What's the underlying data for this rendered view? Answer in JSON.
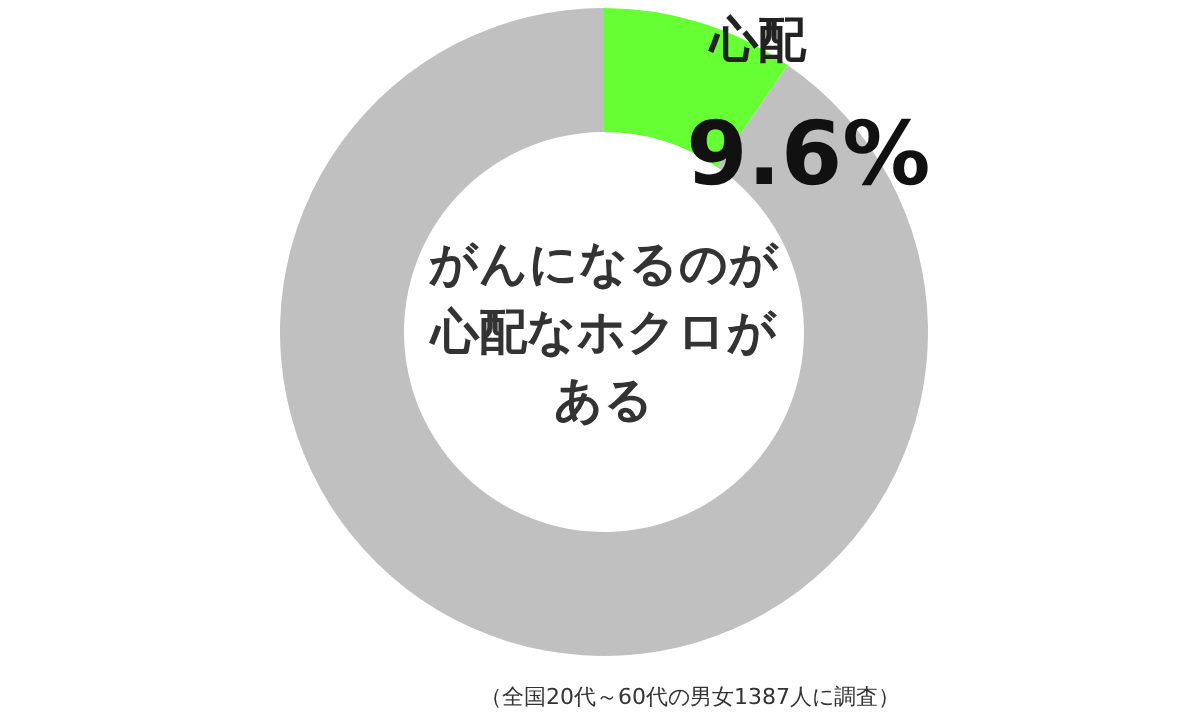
{
  "chart_data": {
    "type": "donut",
    "title": "がんになるのが心配なホクロがある",
    "categories": [
      "心配",
      null
    ],
    "values": [
      9.6,
      90.4
    ],
    "colors": [
      "#66ff33",
      "#c0c0c0"
    ],
    "value_labels": [
      "9.6%",
      null
    ],
    "annotations": [
      "（全国20代～60代の男女1387人に調査）"
    ]
  }
}
